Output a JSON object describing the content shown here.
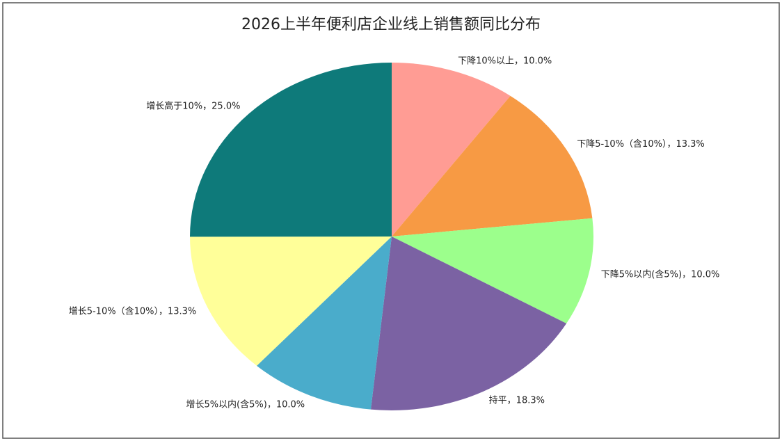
{
  "chart_data": {
    "type": "pie",
    "title": "2026上半年便利店企业线上销售额同比分布",
    "values": [
      10.0,
      13.3,
      10.0,
      18.3,
      10.0,
      13.3,
      25.0
    ],
    "value_labels": [
      "下降10%以上，10.0%",
      "下降5-10%（含10%），13.3%",
      "下降5%以内(含5%)，10.0%",
      "持平，18.3%",
      "增长5%以内(含5%)，10.0%",
      "增长5-10%（含10%），13.3%",
      "增长高于10%，25.0%"
    ],
    "colors": [
      "#ff9c94",
      "#f79a44",
      "#9cff8c",
      "#7b62a3",
      "#4aaccb",
      "#ffff99",
      "#0e7a7a"
    ]
  }
}
